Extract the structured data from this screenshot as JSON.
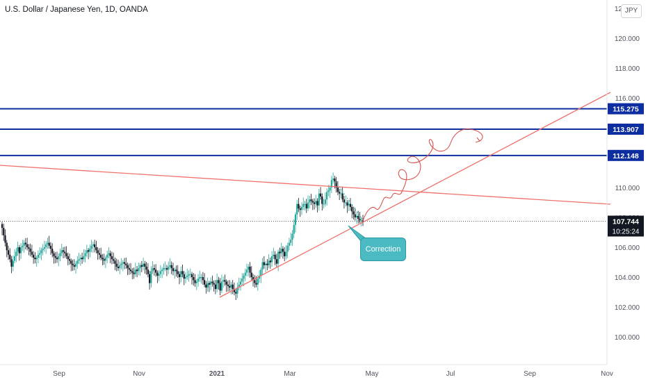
{
  "header": {
    "title": "U.S. Dollar / Japanese Yen, 1D, OANDA"
  },
  "currency_badge": "JPY",
  "annotation": {
    "label": "Correction"
  },
  "colors": {
    "up": "#26a69a",
    "down": "#131722",
    "horizontal_line": "#0d2ea0",
    "trendline": "#f0706a",
    "annotation_fill": "#4bbac2",
    "price_label": "#131722"
  },
  "chart_data": {
    "type": "candlestick",
    "title": "U.S. Dollar / Japanese Yen, 1D, OANDA",
    "xlabel": "",
    "ylabel": "",
    "ylim": [
      99,
      122
    ],
    "y_ticks": [
      "100.000",
      "102.000",
      "104.000",
      "106.000",
      "108.000",
      "110.000",
      "112.000",
      "114.000",
      "116.000",
      "118.000",
      "120.000",
      "122.000"
    ],
    "x_ticks": [
      "Sep",
      "Nov",
      "2021",
      "Mar",
      "May",
      "Jul",
      "Sep",
      "Nov"
    ],
    "horizontal_levels": [
      {
        "value": 115.275,
        "label": "115.275"
      },
      {
        "value": 113.907,
        "label": "113.907"
      },
      {
        "value": 112.148,
        "label": "112.148"
      }
    ],
    "current_price": {
      "value": 107.744,
      "label": "107.744",
      "countdown": "10:25:24"
    },
    "trendlines": [
      {
        "name": "descending",
        "from": [
          "2020-07",
          111.4
        ],
        "to": [
          "2021-11",
          108.8
        ]
      },
      {
        "name": "ascending",
        "from": [
          "2021-01-06",
          102.6
        ],
        "to": [
          "2021-11",
          116.3
        ]
      }
    ],
    "annotations": [
      {
        "text": "Correction",
        "target": [
          "2021-04-23",
          107.7
        ]
      }
    ],
    "projection": "hand-drawn wave path from ~107.8 (late Apr) up toward ~113.9 (mid Jul)",
    "closes": [
      107.3,
      106.8,
      106.3,
      105.8,
      105.5,
      105.2,
      104.7,
      105.1,
      105.4,
      105.7,
      106.0,
      105.6,
      106.0,
      106.1,
      106.3,
      106.2,
      106.0,
      105.9,
      105.7,
      105.5,
      105.3,
      105.2,
      105.3,
      105.5,
      105.6,
      105.8,
      105.9,
      106.0,
      106.2,
      106.3,
      106.1,
      105.9,
      105.6,
      105.4,
      105.3,
      105.2,
      105.4,
      105.6,
      105.8,
      105.7,
      105.6,
      105.4,
      105.2,
      105.1,
      104.9,
      104.8,
      104.7,
      104.9,
      105.1,
      105.2,
      105.3,
      105.2,
      105.4,
      105.6,
      105.8,
      105.7,
      105.9,
      106.1,
      106.2,
      106.0,
      105.8,
      105.6,
      105.5,
      105.3,
      105.2,
      105.1,
      105.3,
      105.5,
      105.6,
      105.4,
      105.2,
      105.1,
      104.9,
      104.7,
      104.6,
      104.8,
      104.9,
      105.0,
      104.9,
      104.8,
      104.6,
      104.5,
      104.4,
      104.3,
      104.2,
      104.5,
      104.4,
      104.6,
      104.8,
      104.7,
      104.9,
      104.7,
      104.5,
      104.2,
      103.6,
      104.4,
      104.6,
      104.5,
      104.3,
      104.1,
      104.2,
      104.4,
      104.5,
      104.6,
      104.6,
      104.5,
      104.7,
      104.8,
      104.6,
      104.4,
      104.5,
      104.4,
      104.2,
      104.0,
      104.4,
      104.2,
      103.9,
      104.0,
      104.1,
      104.2,
      104.2,
      104.0,
      103.8,
      103.6,
      103.7,
      103.9,
      104.0,
      104.0,
      103.8,
      103.5,
      103.3,
      103.6,
      103.5,
      103.7,
      103.6,
      103.5,
      103.2,
      103.8,
      103.6,
      103.1,
      103.7,
      103.8,
      103.7,
      103.5,
      103.4,
      103.3,
      103.5,
      103.2,
      103.0,
      102.9,
      103.3,
      103.5,
      103.7,
      103.9,
      104.1,
      104.3,
      104.5,
      104.7,
      104.3,
      104.0,
      103.8,
      103.6,
      103.5,
      103.9,
      104.1,
      104.5,
      105.0,
      104.8,
      104.9,
      104.8,
      105.1,
      105.0,
      105.4,
      105.5,
      105.2,
      104.9,
      105.7,
      105.6,
      105.9,
      105.7,
      105.4,
      105.7,
      106.1,
      106.3,
      106.5,
      106.9,
      107.5,
      108.2,
      108.9,
      108.6,
      108.5,
      108.7,
      108.9,
      108.9,
      108.6,
      109.0,
      109.2,
      109.1,
      109.0,
      108.9,
      109.1,
      108.8,
      109.6,
      109.4,
      108.9,
      108.9,
      109.2,
      109.7,
      109.8,
      110.0,
      110.5,
      110.6,
      110.4,
      110.0,
      109.7,
      109.6,
      109.6,
      109.2,
      109.0,
      109.0,
      108.8,
      108.9,
      108.7,
      108.4,
      108.2,
      108.0,
      108.1,
      107.9,
      107.8,
      107.8,
      107.7
    ]
  }
}
